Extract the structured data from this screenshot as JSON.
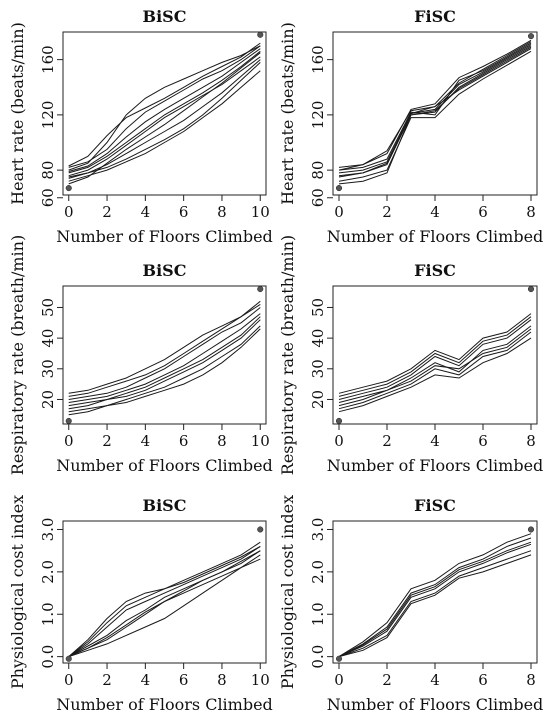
{
  "figure": {
    "panels": [
      {
        "id": "hr-bisc",
        "title": "BiSC",
        "ylabel": "Heart rate (beats/min)",
        "xlabel": "Number of Floors Climbed"
      },
      {
        "id": "hr-fisc",
        "title": "FiSC",
        "ylabel": "Heart rate (beats/min)",
        "xlabel": "Number of Floors Climbed"
      },
      {
        "id": "rr-bisc",
        "title": "BiSC",
        "ylabel": "Respiratory rate (breath/min)",
        "xlabel": "Number of Floors Climbed"
      },
      {
        "id": "rr-fisc",
        "title": "FiSC",
        "ylabel": "Respiratory rate (breath/min)",
        "xlabel": "Number of Floors Climbed"
      },
      {
        "id": "pci-bisc",
        "title": "BiSC",
        "ylabel": "Physiological cost index",
        "xlabel": "Number of Floors Climbed"
      },
      {
        "id": "pci-fisc",
        "title": "FiSC",
        "ylabel": "Physiological cost index",
        "xlabel": "Number of Floors Climbed"
      }
    ]
  },
  "chart_data": [
    {
      "type": "line",
      "title": "BiSC",
      "xlabel": "Number of Floors Climbed",
      "ylabel": "Heart rate (beats/min)",
      "x": [
        0,
        1,
        2,
        3,
        4,
        5,
        6,
        7,
        8,
        9,
        10
      ],
      "xticks": [
        0,
        2,
        4,
        6,
        8,
        10
      ],
      "yticks": [
        60,
        80,
        120,
        160
      ],
      "ytick_labels": [
        "60",
        "80",
        "120",
        "160"
      ],
      "xlim": [
        -0.3,
        10.3
      ],
      "ylim": [
        62,
        180
      ],
      "series": [
        {
          "values": [
            70,
            75,
            85,
            95,
            104,
            113,
            123,
            133,
            143,
            154,
            165
          ]
        },
        {
          "values": [
            80,
            85,
            100,
            120,
            132,
            140,
            146,
            152,
            158,
            163,
            170
          ]
        },
        {
          "values": [
            75,
            78,
            82,
            88,
            95,
            102,
            110,
            120,
            132,
            145,
            158
          ]
        },
        {
          "values": [
            83,
            90,
            105,
            118,
            125,
            132,
            140,
            148,
            155,
            162,
            172
          ]
        },
        {
          "values": [
            72,
            76,
            80,
            86,
            92,
            100,
            108,
            118,
            128,
            140,
            152
          ]
        },
        {
          "values": [
            78,
            82,
            90,
            100,
            110,
            120,
            128,
            136,
            145,
            155,
            166
          ]
        },
        {
          "values": [
            76,
            80,
            88,
            98,
            108,
            118,
            126,
            134,
            142,
            152,
            162
          ]
        },
        {
          "values": [
            82,
            86,
            95,
            110,
            122,
            130,
            138,
            146,
            152,
            160,
            170
          ]
        },
        {
          "values": [
            74,
            78,
            84,
            92,
            100,
            108,
            116,
            126,
            136,
            148,
            160
          ]
        },
        {
          "values": [
            79,
            83,
            92,
            104,
            115,
            124,
            132,
            140,
            148,
            158,
            168
          ]
        }
      ],
      "markers": [
        {
          "x": 0,
          "y": 67
        },
        {
          "x": 10,
          "y": 178
        }
      ]
    },
    {
      "type": "line",
      "title": "FiSC",
      "xlabel": "Number of Floors Climbed",
      "ylabel": "Heart rate (beats/min)",
      "x": [
        0,
        1,
        2,
        3,
        4,
        5,
        6,
        7,
        8
      ],
      "xticks": [
        0,
        2,
        4,
        6,
        8
      ],
      "yticks": [
        60,
        80,
        120,
        160
      ],
      "ytick_labels": [
        "60",
        "80",
        "120",
        "160"
      ],
      "xlim": [
        -0.25,
        8.25
      ],
      "ylim": [
        62,
        180
      ],
      "series": [
        {
          "values": [
            70,
            72,
            78,
            120,
            122,
            140,
            150,
            160,
            170
          ]
        },
        {
          "values": [
            80,
            82,
            88,
            122,
            120,
            145,
            152,
            162,
            172
          ]
        },
        {
          "values": [
            75,
            78,
            85,
            121,
            126,
            138,
            148,
            158,
            168
          ]
        },
        {
          "values": [
            82,
            84,
            92,
            124,
            128,
            147,
            155,
            164,
            174
          ]
        },
        {
          "values": [
            72,
            75,
            80,
            118,
            118,
            135,
            146,
            156,
            166
          ]
        },
        {
          "values": [
            78,
            80,
            86,
            121,
            124,
            142,
            151,
            161,
            171
          ]
        },
        {
          "values": [
            76,
            78,
            84,
            120,
            123,
            139,
            149,
            159,
            169
          ]
        },
        {
          "values": [
            80,
            84,
            94,
            123,
            126,
            143,
            153,
            163,
            173
          ]
        }
      ],
      "markers": [
        {
          "x": 0,
          "y": 67
        },
        {
          "x": 8,
          "y": 177
        }
      ]
    },
    {
      "type": "line",
      "title": "BiSC",
      "xlabel": "Number of Floors Climbed",
      "ylabel": "Respiratory rate (breath/min)",
      "x": [
        0,
        1,
        2,
        3,
        4,
        5,
        6,
        7,
        8,
        9,
        10
      ],
      "xticks": [
        0,
        2,
        4,
        6,
        8,
        10
      ],
      "yticks": [
        20,
        30,
        40,
        50
      ],
      "ytick_labels": [
        "20",
        "30",
        "40",
        "50"
      ],
      "xlim": [
        -0.3,
        10.3
      ],
      "ylim": [
        12,
        57
      ],
      "series": [
        {
          "values": [
            15,
            16,
            18,
            20,
            22,
            24,
            27,
            30,
            34,
            38,
            44
          ]
        },
        {
          "values": [
            22,
            23,
            25,
            27,
            30,
            33,
            37,
            41,
            44,
            47,
            52
          ]
        },
        {
          "values": [
            18,
            19,
            20,
            21,
            23,
            26,
            29,
            32,
            36,
            40,
            46
          ]
        },
        {
          "values": [
            20,
            21,
            22,
            24,
            27,
            30,
            34,
            38,
            42,
            45,
            50
          ]
        },
        {
          "values": [
            16,
            17,
            18,
            19,
            21,
            23,
            25,
            28,
            32,
            37,
            43
          ]
        },
        {
          "values": [
            19,
            20,
            21,
            23,
            25,
            28,
            31,
            35,
            39,
            43,
            48
          ]
        },
        {
          "values": [
            17,
            18,
            20,
            22,
            24,
            27,
            30,
            33,
            37,
            41,
            47
          ]
        },
        {
          "values": [
            21,
            22,
            24,
            26,
            28,
            31,
            35,
            39,
            43,
            47,
            51
          ]
        }
      ],
      "markers": [
        {
          "x": 0,
          "y": 13
        },
        {
          "x": 10,
          "y": 56
        }
      ]
    },
    {
      "type": "line",
      "title": "FiSC",
      "xlabel": "Number of Floors Climbed",
      "ylabel": "Respiratory rate (breath/min)",
      "x": [
        0,
        1,
        2,
        3,
        4,
        5,
        6,
        7,
        8
      ],
      "xticks": [
        0,
        2,
        4,
        6,
        8
      ],
      "yticks": [
        20,
        30,
        40,
        50
      ],
      "ytick_labels": [
        "20",
        "30",
        "40",
        "50"
      ],
      "xlim": [
        -0.25,
        8.25
      ],
      "ylim": [
        12,
        57
      ],
      "series": [
        {
          "values": [
            16,
            18,
            21,
            24,
            28,
            27,
            32,
            35,
            40
          ]
        },
        {
          "values": [
            22,
            24,
            26,
            30,
            36,
            33,
            40,
            42,
            48
          ]
        },
        {
          "values": [
            18,
            20,
            23,
            27,
            32,
            29,
            36,
            38,
            44
          ]
        },
        {
          "values": [
            20,
            22,
            24,
            28,
            34,
            31,
            38,
            40,
            46
          ]
        },
        {
          "values": [
            17,
            19,
            22,
            25,
            30,
            28,
            34,
            36,
            42
          ]
        },
        {
          "values": [
            21,
            23,
            25,
            29,
            35,
            32,
            39,
            41,
            47
          ]
        },
        {
          "values": [
            19,
            21,
            23,
            26,
            31,
            30,
            35,
            37,
            43
          ]
        }
      ],
      "markers": [
        {
          "x": 0,
          "y": 13
        },
        {
          "x": 8,
          "y": 56
        }
      ]
    },
    {
      "type": "line",
      "title": "BiSC",
      "xlabel": "Number of Floors Climbed",
      "ylabel": "Physiological cost index",
      "x": [
        0,
        1,
        2,
        3,
        4,
        5,
        6,
        7,
        8,
        9,
        10
      ],
      "xticks": [
        0,
        2,
        4,
        6,
        8,
        10
      ],
      "yticks": [
        0,
        1,
        2,
        3
      ],
      "ytick_labels": [
        "0.0",
        "1.0",
        "2.0",
        "3.0"
      ],
      "xlim": [
        -0.3,
        10.3
      ],
      "ylim": [
        -0.15,
        3.2
      ],
      "series": [
        {
          "values": [
            0,
            0.2,
            0.4,
            0.7,
            1.0,
            1.3,
            1.5,
            1.7,
            1.9,
            2.1,
            2.3
          ]
        },
        {
          "values": [
            0,
            0.4,
            0.9,
            1.3,
            1.5,
            1.6,
            1.8,
            2.0,
            2.2,
            2.4,
            2.7
          ]
        },
        {
          "values": [
            0,
            0.15,
            0.3,
            0.5,
            0.7,
            0.9,
            1.2,
            1.5,
            1.8,
            2.1,
            2.4
          ]
        },
        {
          "values": [
            0,
            0.3,
            0.7,
            1.1,
            1.3,
            1.5,
            1.7,
            1.9,
            2.1,
            2.3,
            2.6
          ]
        },
        {
          "values": [
            0,
            0.25,
            0.5,
            0.85,
            1.1,
            1.4,
            1.6,
            1.8,
            2.0,
            2.2,
            2.5
          ]
        },
        {
          "values": [
            0,
            0.2,
            0.45,
            0.75,
            1.05,
            1.3,
            1.55,
            1.8,
            2.0,
            2.25,
            2.5
          ]
        },
        {
          "values": [
            0,
            0.35,
            0.8,
            1.2,
            1.4,
            1.6,
            1.75,
            1.95,
            2.15,
            2.35,
            2.6
          ]
        }
      ],
      "markers": [
        {
          "x": 0,
          "y": -0.05
        },
        {
          "x": 10,
          "y": 3.0
        }
      ]
    },
    {
      "type": "line",
      "title": "FiSC",
      "xlabel": "Number of Floors Climbed",
      "ylabel": "Physiological cost index",
      "x": [
        0,
        1,
        2,
        3,
        4,
        5,
        6,
        7,
        8
      ],
      "xticks": [
        0,
        2,
        4,
        6,
        8
      ],
      "yticks": [
        0,
        1,
        2,
        3
      ],
      "ytick_labels": [
        "0.0",
        "1.0",
        "2.0",
        "3.0"
      ],
      "xlim": [
        -0.25,
        8.25
      ],
      "ylim": [
        -0.15,
        3.2
      ],
      "series": [
        {
          "values": [
            0,
            0.2,
            0.5,
            1.3,
            1.5,
            1.9,
            2.1,
            2.3,
            2.5
          ]
        },
        {
          "values": [
            0,
            0.3,
            0.7,
            1.5,
            1.7,
            2.1,
            2.3,
            2.6,
            2.8
          ]
        },
        {
          "values": [
            0,
            0.25,
            0.6,
            1.4,
            1.6,
            2.0,
            2.2,
            2.45,
            2.65
          ]
        },
        {
          "values": [
            0,
            0.35,
            0.8,
            1.6,
            1.8,
            2.2,
            2.4,
            2.7,
            2.9
          ]
        },
        {
          "values": [
            0,
            0.15,
            0.45,
            1.25,
            1.45,
            1.85,
            2.0,
            2.2,
            2.4
          ]
        },
        {
          "values": [
            0,
            0.28,
            0.65,
            1.45,
            1.65,
            2.05,
            2.25,
            2.5,
            2.7
          ]
        }
      ],
      "markers": [
        {
          "x": 0,
          "y": -0.05
        },
        {
          "x": 8,
          "y": 3.0
        }
      ]
    }
  ]
}
